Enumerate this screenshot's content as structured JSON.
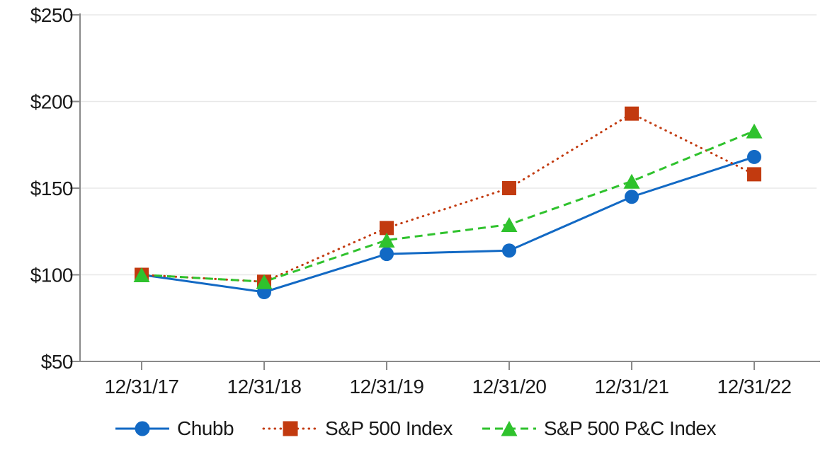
{
  "colors": {
    "background": "#ffffff",
    "axis": "#8a8a8a",
    "grid": "#e8e8e8",
    "text": "#1a1a1a"
  },
  "chart_data": {
    "type": "line",
    "title": "",
    "x_labels": [
      "12/31/17",
      "12/31/18",
      "12/31/19",
      "12/31/20",
      "12/31/21",
      "12/31/22"
    ],
    "y_axis": {
      "min": 50,
      "max": 250,
      "tick_step": 50,
      "tick_values": [
        50,
        100,
        150,
        200,
        250
      ],
      "tick_labels": [
        "$50",
        "$100",
        "$150",
        "$200",
        "$250"
      ],
      "prefix": "$"
    },
    "grid": "horizontal-only",
    "legend_position": "bottom",
    "series": [
      {
        "name": "Chubb",
        "color": "#1269c4",
        "marker": "circle",
        "line_style": "solid",
        "values": [
          100,
          90,
          112,
          114,
          145,
          168
        ]
      },
      {
        "name": "S&P 500 Index",
        "color": "#c23a0f",
        "marker": "square",
        "line_style": "dotted",
        "values": [
          100,
          96,
          127,
          150,
          193,
          158
        ]
      },
      {
        "name": "S&P 500 P&C Index",
        "color": "#2fc22d",
        "marker": "triangle",
        "line_style": "dashed",
        "values": [
          100,
          96,
          120,
          129,
          154,
          183
        ]
      }
    ]
  }
}
